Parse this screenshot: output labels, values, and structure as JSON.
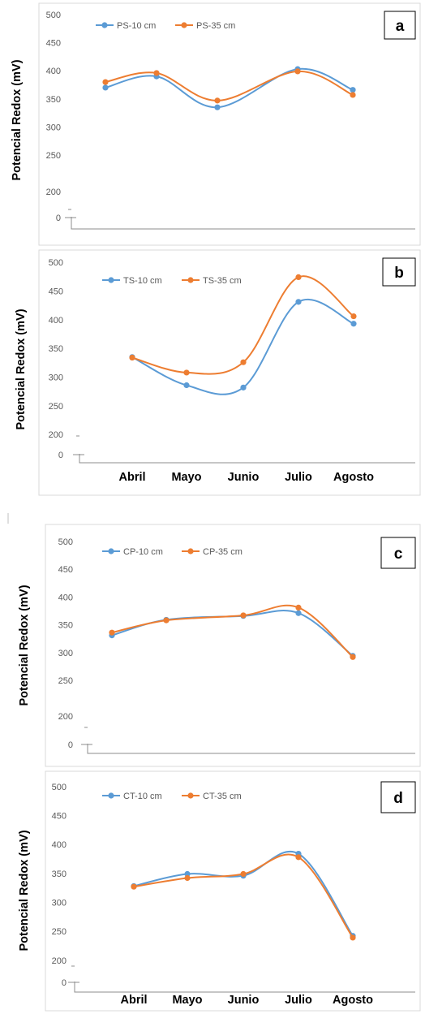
{
  "colors": {
    "series_10cm": "#5b9bd5",
    "series_35cm": "#ed7d31"
  },
  "chart_data": [
    {
      "type": "line",
      "panel_label": "a",
      "ylabel": "Potencial Redox (mV)",
      "categories": [
        "Abril",
        "Mayo",
        "Junio",
        "Julio",
        "Agosto"
      ],
      "show_categories": false,
      "yticks": [
        500,
        450,
        400,
        350,
        300,
        250,
        200,
        0
      ],
      "broken_axis": true,
      "legend_position": "top-left",
      "series": [
        {
          "name": "PS-10 cm",
          "values": [
            370,
            390,
            335,
            403,
            366
          ]
        },
        {
          "name": "PS-35 cm",
          "values": [
            380,
            396,
            347,
            399,
            357
          ]
        }
      ]
    },
    {
      "type": "line",
      "panel_label": "b",
      "ylabel": "Potencial Redox (mV)",
      "categories": [
        "Abril",
        "Mayo",
        "Junio",
        "Julio",
        "Agosto"
      ],
      "show_categories": true,
      "yticks": [
        500,
        450,
        400,
        350,
        300,
        250,
        200,
        0
      ],
      "broken_axis": true,
      "legend_position": "top-left",
      "series": [
        {
          "name": "TS-10 cm",
          "values": [
            335,
            286,
            282,
            431,
            393
          ]
        },
        {
          "name": "TS-35 cm",
          "values": [
            334,
            308,
            326,
            474,
            406
          ]
        }
      ]
    },
    {
      "type": "line",
      "panel_label": "c",
      "ylabel": "Potencial Redox (mV)",
      "categories": [
        "Abril",
        "Mayo",
        "Junio",
        "Julio",
        "Agosto"
      ],
      "show_categories": false,
      "yticks": [
        500,
        450,
        400,
        350,
        300,
        250,
        200,
        0
      ],
      "broken_axis": true,
      "legend_position": "top-left",
      "series": [
        {
          "name": "CP-10 cm",
          "values": [
            331,
            359,
            366,
            371,
            294
          ]
        },
        {
          "name": "CP-35 cm",
          "values": [
            336,
            358,
            367,
            381,
            292
          ]
        }
      ]
    },
    {
      "type": "line",
      "panel_label": "d",
      "ylabel": "Potencial Redox (mV)",
      "categories": [
        "Abril",
        "Mayo",
        "Junio",
        "Julio",
        "Agosto"
      ],
      "show_categories": true,
      "yticks": [
        500,
        450,
        400,
        350,
        300,
        250,
        200,
        0
      ],
      "broken_axis": true,
      "legend_position": "top-left",
      "series": [
        {
          "name": "CT-10 cm",
          "values": [
            328,
            349,
            346,
            384,
            242
          ]
        },
        {
          "name": "CT-35 cm",
          "values": [
            327,
            342,
            349,
            378,
            239
          ]
        }
      ]
    }
  ]
}
